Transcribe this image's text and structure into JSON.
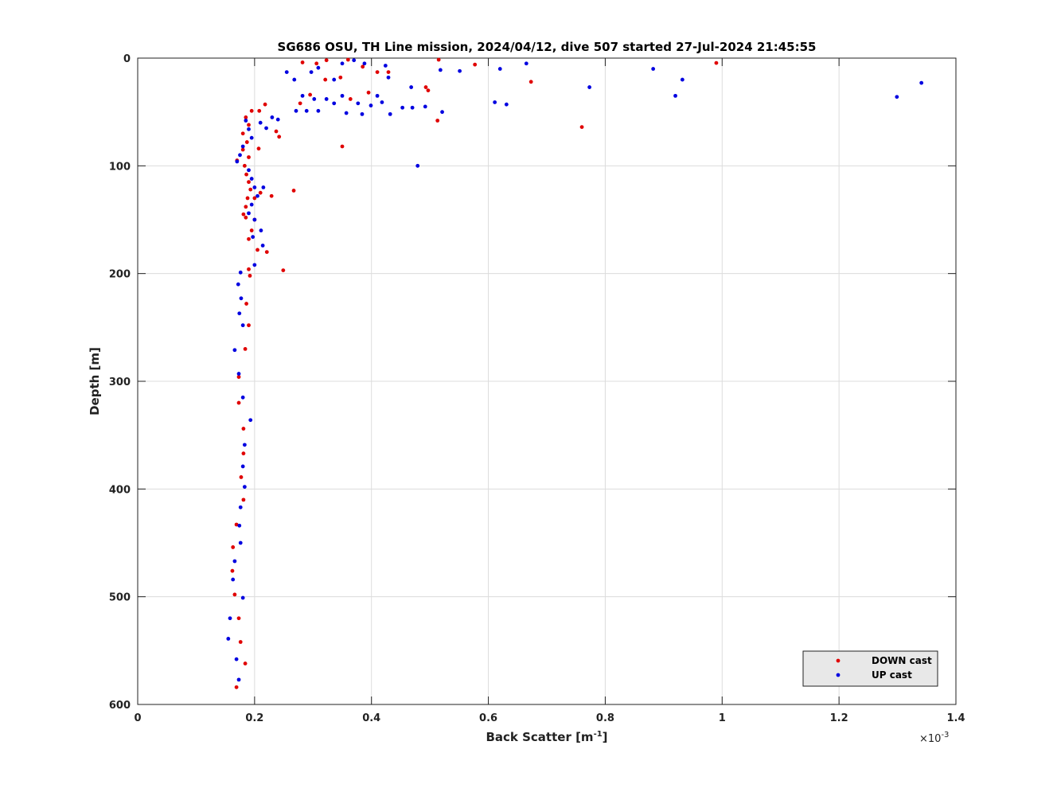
{
  "chart_data": {
    "type": "scatter",
    "title": "SG686 OSU, TH Line mission, 2024/04/12, dive 507 started 27-Jul-2024 21:45:55",
    "xlabel": {
      "text": "Back Scatter [m",
      "sup": "-1",
      "end": "]"
    },
    "x_multiplier": {
      "base": "×10",
      "exponent": "-3"
    },
    "ylabel": "Depth [m]",
    "xlim": [
      0,
      1.4
    ],
    "xticks": [
      0,
      0.2,
      0.4,
      0.6,
      0.8,
      1,
      1.2,
      1.4
    ],
    "ylim": [
      0,
      600
    ],
    "yticks": [
      0,
      100,
      200,
      300,
      400,
      500,
      600
    ],
    "y_reversed": true,
    "grid": true,
    "legend": "lower right",
    "series": [
      {
        "name": "DOWN cast",
        "color": "#e00000",
        "x": [
          0.515,
          0.577,
          0.99,
          0.673,
          0.76,
          0.513,
          0.35,
          0.267,
          0.249,
          0.493,
          0.497,
          0.429,
          0.41,
          0.385,
          0.36,
          0.323,
          0.306,
          0.282,
          0.321,
          0.295,
          0.278,
          0.364,
          0.395,
          0.347,
          0.218,
          0.208,
          0.195,
          0.242,
          0.237,
          0.207,
          0.229,
          0.221,
          0.19,
          0.192,
          0.186,
          0.19,
          0.184,
          0.173,
          0.173,
          0.181,
          0.181,
          0.177,
          0.181,
          0.169,
          0.163,
          0.162,
          0.166,
          0.173,
          0.176,
          0.184,
          0.169,
          0.185,
          0.19,
          0.18,
          0.187,
          0.18,
          0.19,
          0.183,
          0.186,
          0.19,
          0.193,
          0.188,
          0.185,
          0.181,
          0.2,
          0.195,
          0.19,
          0.205,
          0.185,
          0.17,
          0.2,
          0.21
        ],
        "y": [
          1.5,
          6,
          4.5,
          22,
          64,
          58,
          82,
          123,
          197,
          27,
          30,
          13,
          13,
          8,
          1.5,
          2,
          5,
          4,
          20,
          34,
          42,
          38,
          32,
          18,
          43,
          49,
          49,
          73,
          68,
          84,
          128,
          180,
          196,
          202,
          228,
          248,
          270,
          296,
          320,
          344,
          367,
          389,
          410,
          433,
          454,
          476,
          498,
          520,
          542,
          562,
          584,
          55,
          62,
          70,
          78,
          85,
          92,
          100,
          108,
          115,
          122,
          130,
          138,
          145,
          150,
          160,
          168,
          178,
          148,
          95,
          130,
          125
        ]
      },
      {
        "name": "UP cast",
        "color": "#0000e0",
        "x": [
          1.341,
          1.299,
          0.932,
          0.92,
          0.882,
          0.773,
          0.665,
          0.62,
          0.611,
          0.631,
          0.479,
          0.551,
          0.518,
          0.521,
          0.492,
          0.47,
          0.468,
          0.453,
          0.429,
          0.424,
          0.432,
          0.41,
          0.388,
          0.384,
          0.37,
          0.35,
          0.336,
          0.309,
          0.297,
          0.255,
          0.268,
          0.271,
          0.289,
          0.309,
          0.336,
          0.357,
          0.282,
          0.302,
          0.323,
          0.35,
          0.377,
          0.399,
          0.418,
          0.185,
          0.19,
          0.195,
          0.18,
          0.175,
          0.17,
          0.19,
          0.195,
          0.2,
          0.205,
          0.195,
          0.19,
          0.2,
          0.23,
          0.21,
          0.24,
          0.22,
          0.215,
          0.211,
          0.214,
          0.197,
          0.2,
          0.176,
          0.172,
          0.177,
          0.174,
          0.18,
          0.166,
          0.173,
          0.18,
          0.193,
          0.183,
          0.18,
          0.183,
          0.176,
          0.174,
          0.176,
          0.166,
          0.163,
          0.18,
          0.158,
          0.155,
          0.169,
          0.173
        ],
        "y": [
          23,
          36,
          20,
          35,
          10,
          27,
          5,
          10,
          41,
          43,
          100,
          12,
          11,
          50,
          45,
          46,
          27,
          46,
          18,
          7,
          52,
          35,
          5,
          52,
          2,
          5,
          20,
          9,
          13,
          13,
          20,
          49,
          49,
          49,
          42,
          51,
          35,
          38,
          38,
          35,
          42,
          44,
          41,
          58,
          66,
          74,
          82,
          90,
          96,
          104,
          112,
          120,
          128,
          136,
          144,
          150,
          55,
          60,
          57,
          65,
          120,
          160,
          174,
          166,
          192,
          199,
          210,
          223,
          237,
          248,
          271,
          293,
          315,
          336,
          359,
          379,
          398,
          417,
          434,
          450,
          467,
          484,
          501,
          520,
          539,
          558,
          577
        ]
      }
    ]
  }
}
